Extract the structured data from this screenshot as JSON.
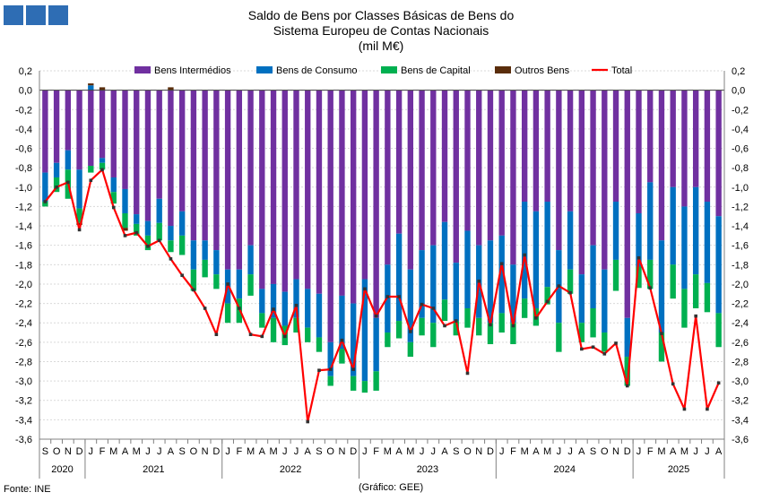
{
  "logo": {
    "icon": "gee-logo-icon",
    "color": "#2e6db4"
  },
  "chart_data": {
    "type": "bar",
    "stacked": true,
    "title": [
      "Saldo de Bens por Classes Básicas de Bens do",
      "Sistema Europeu de Contas Nacionais",
      "(mil M€)"
    ],
    "ylim": [
      -3.6,
      0.2
    ],
    "yticks": [
      "0,2",
      "0,0",
      "-0,2",
      "-0,4",
      "-0,6",
      "-0,8",
      "-1,0",
      "-1,2",
      "-1,4",
      "-1,6",
      "-1,8",
      "-2,0",
      "-2,2",
      "-2,4",
      "-2,6",
      "-2,8",
      "-3,0",
      "-3,2",
      "-3,4",
      "-3,6"
    ],
    "categories": [
      "S",
      "O",
      "N",
      "D",
      "J",
      "F",
      "M",
      "A",
      "M",
      "J",
      "J",
      "A",
      "S",
      "O",
      "N",
      "D",
      "J",
      "F",
      "M",
      "A",
      "M",
      "J",
      "J",
      "A",
      "S",
      "O",
      "N",
      "D",
      "J",
      "F",
      "M",
      "A",
      "M",
      "J",
      "J",
      "A",
      "S",
      "O",
      "N",
      "D",
      "J",
      "F",
      "M",
      "A",
      "M",
      "J",
      "J",
      "A",
      "S",
      "O",
      "N",
      "D",
      "J",
      "F",
      "M",
      "A",
      "M",
      "J",
      "J",
      "A"
    ],
    "years": [
      {
        "label": "2020",
        "start": 0,
        "end": 3
      },
      {
        "label": "2021",
        "start": 4,
        "end": 15
      },
      {
        "label": "2022",
        "start": 16,
        "end": 27
      },
      {
        "label": "2023",
        "start": 28,
        "end": 39
      },
      {
        "label": "2024",
        "start": 40,
        "end": 51
      },
      {
        "label": "2025",
        "start": 52,
        "end": 59
      }
    ],
    "series": [
      {
        "name": "Bens Intermédios",
        "color": "#7030a0",
        "values": [
          -0.85,
          -0.75,
          -0.62,
          -0.82,
          -0.78,
          -0.7,
          -0.9,
          -1.02,
          -1.28,
          -1.35,
          -1.12,
          -1.4,
          -1.25,
          -1.55,
          -1.55,
          -1.65,
          -1.85,
          -1.85,
          -1.6,
          -2.05,
          -2.0,
          -2.08,
          -1.95,
          -2.05,
          -2.1,
          -2.6,
          -2.12,
          -2.2,
          -1.95,
          -2.35,
          -1.8,
          -1.48,
          -1.85,
          -1.65,
          -1.6,
          -1.36,
          -1.78,
          -1.45,
          -1.6,
          -1.55,
          -1.5,
          -1.8,
          -1.15,
          -1.25,
          -1.15,
          -1.65,
          -1.25,
          -1.9,
          -1.6,
          -1.85,
          -1.15,
          -2.35,
          -1.27,
          -0.95,
          -1.55,
          -1.0,
          -1.2,
          -1.0,
          -1.15,
          -1.3
        ]
      },
      {
        "name": "Bens de Consumo",
        "color": "#0070c0",
        "values": [
          -0.3,
          -0.15,
          -0.2,
          -0.4,
          0.05,
          -0.05,
          -0.15,
          -0.25,
          -0.1,
          -0.15,
          -0.25,
          -0.15,
          -0.25,
          -0.3,
          -0.2,
          -0.25,
          -0.35,
          -0.3,
          -0.3,
          -0.25,
          -0.35,
          -0.35,
          -0.4,
          -0.4,
          -0.45,
          -0.35,
          -0.55,
          -0.75,
          -1.05,
          -0.55,
          -0.7,
          -0.9,
          -0.75,
          -0.7,
          -0.8,
          -0.8,
          -0.6,
          -0.8,
          -0.75,
          -0.85,
          -0.8,
          -0.6,
          -1.0,
          -1.0,
          -0.88,
          -0.75,
          -0.6,
          -0.5,
          -0.65,
          -0.65,
          -0.6,
          -0.4,
          -0.55,
          -0.8,
          -0.95,
          -0.8,
          -0.85,
          -0.9,
          -0.84,
          -1.0
        ]
      },
      {
        "name": "Bens de Capital",
        "color": "#00b050",
        "values": [
          -0.05,
          -0.15,
          -0.3,
          -0.15,
          -0.07,
          -0.07,
          -0.12,
          -0.15,
          -0.12,
          -0.15,
          -0.18,
          -0.12,
          -0.2,
          -0.22,
          -0.18,
          -0.15,
          -0.2,
          -0.25,
          -0.22,
          -0.15,
          -0.25,
          -0.2,
          -0.15,
          -0.15,
          -0.15,
          -0.1,
          -0.15,
          -0.15,
          -0.12,
          -0.2,
          -0.15,
          -0.18,
          -0.15,
          -0.18,
          -0.25,
          -0.22,
          -0.15,
          -0.2,
          -0.18,
          -0.22,
          -0.2,
          -0.22,
          -0.2,
          -0.18,
          -0.18,
          -0.3,
          -0.25,
          -0.2,
          -0.3,
          -0.2,
          -0.32,
          -0.3,
          -0.22,
          -0.3,
          -0.3,
          -0.35,
          -0.4,
          -0.35,
          -0.3,
          -0.35
        ]
      },
      {
        "name": "Outros Bens",
        "color": "#5a2d0c",
        "values": [
          0.0,
          0.0,
          0.0,
          -0.02,
          0.02,
          0.03,
          0.0,
          -0.03,
          0.0,
          0.0,
          0.0,
          0.03,
          0.0,
          0.0,
          0.0,
          0.0,
          0.0,
          0.0,
          0.0,
          0.0,
          0.0,
          0.0,
          0.0,
          0.0,
          0.0,
          0.0,
          0.0,
          0.0,
          0.0,
          0.0,
          0.0,
          0.0,
          0.0,
          0.0,
          0.0,
          0.0,
          0.0,
          0.0,
          0.0,
          0.0,
          0.0,
          0.0,
          0.0,
          0.0,
          0.0,
          0.0,
          0.0,
          0.0,
          0.0,
          0.0,
          0.0,
          0.0,
          0.0,
          0.0,
          0.0,
          0.0,
          0.0,
          0.0,
          0.0,
          0.0
        ]
      },
      {
        "name": "Total",
        "color": "#ff0000",
        "kind": "line",
        "values": [
          -1.15,
          -1.0,
          -0.95,
          -1.44,
          -0.93,
          -0.82,
          -1.21,
          -1.5,
          -1.47,
          -1.61,
          -1.55,
          -1.74,
          -1.91,
          -2.06,
          -2.25,
          -2.52,
          -2.0,
          -2.25,
          -2.52,
          -2.54,
          -2.26,
          -2.54,
          -2.22,
          -3.42,
          -2.89,
          -2.88,
          -2.58,
          -2.88,
          -2.05,
          -2.33,
          -2.13,
          -2.13,
          -2.49,
          -2.21,
          -2.25,
          -2.43,
          -2.38,
          -2.92,
          -1.97,
          -2.42,
          -1.79,
          -2.43,
          -1.7,
          -2.35,
          -2.18,
          -2.02,
          -2.09,
          -2.67,
          -2.65,
          -2.72,
          -2.61,
          -3.05,
          -1.73,
          -2.04,
          -2.51,
          -3.03,
          -3.29,
          -2.33,
          -3.29,
          -3.02
        ]
      }
    ]
  },
  "footer": {
    "source": "Fonte: INE",
    "credit": "(Gráfico: GEE)"
  }
}
